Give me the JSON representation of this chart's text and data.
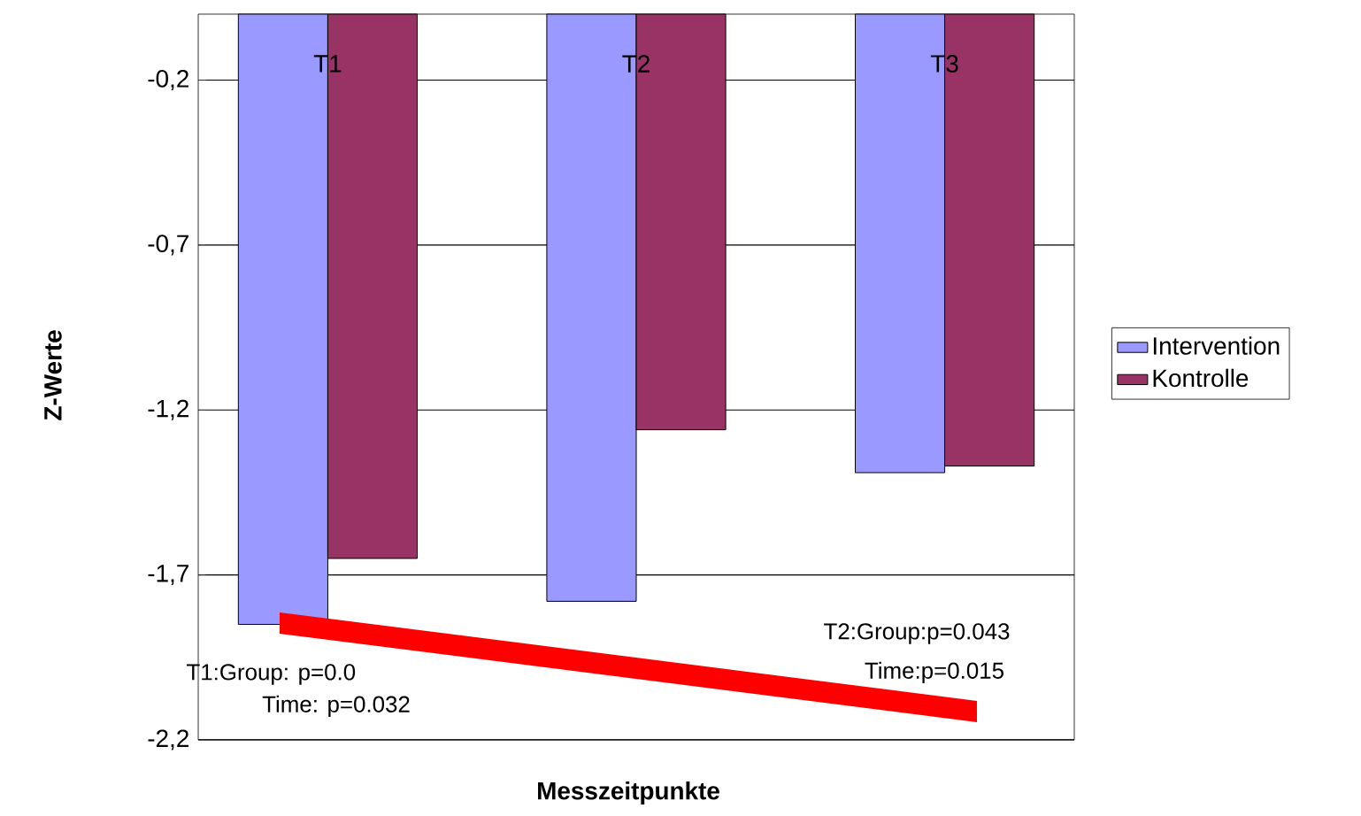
{
  "chart_data": {
    "type": "bar",
    "xlabel": "Messzeitpunkte",
    "ylabel": "Z-Werte",
    "categories": [
      "T1",
      "T2",
      "T3"
    ],
    "series": [
      {
        "name": "Intervention",
        "color": "#9999ff",
        "values": [
          -1.85,
          -1.78,
          -1.39
        ]
      },
      {
        "name": "Kontrolle",
        "color": "#993366",
        "values": [
          -1.65,
          -1.26,
          -1.37
        ]
      }
    ],
    "ylim": [
      -2.2,
      0
    ],
    "yticks": [
      {
        "value": -2.2,
        "label": "-2,2"
      },
      {
        "value": -1.7,
        "label": "-1,7"
      },
      {
        "value": -1.2,
        "label": "-1,2"
      },
      {
        "value": -0.7,
        "label": "-0,7"
      },
      {
        "value": -0.2,
        "label": "-0,2"
      }
    ],
    "grid": "y",
    "legend": "right",
    "annotations": [
      "T1:Group: p=0.0",
      "Time: p=0.032",
      "T2:Group:p=0.043",
      "Time:p=0.015"
    ]
  }
}
